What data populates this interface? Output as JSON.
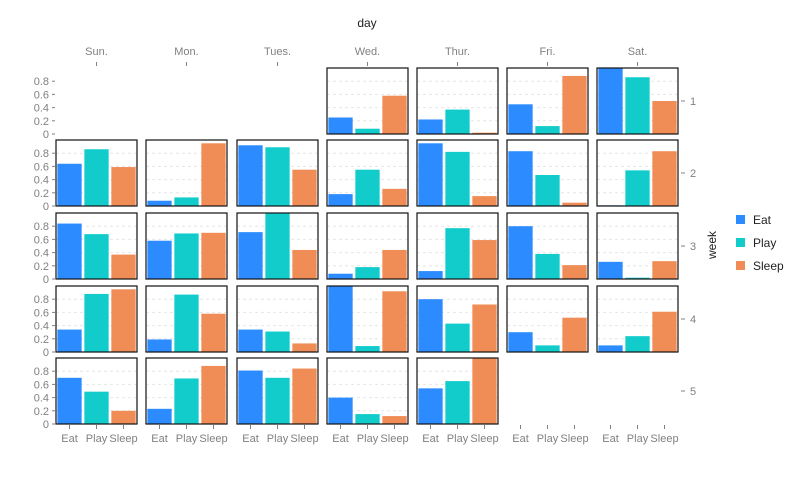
{
  "chart_data": {
    "type": "bar",
    "layout": "facet-grid",
    "title": "",
    "column_title": "day",
    "row_title": "week",
    "columns": [
      "Sun.",
      "Mon.",
      "Tues.",
      "Wed.",
      "Thur.",
      "Fri.",
      "Sat."
    ],
    "rows": [
      "1",
      "2",
      "3",
      "4",
      "5"
    ],
    "categories": [
      "Eat",
      "Play",
      "Sleep"
    ],
    "ylim": [
      0,
      1
    ],
    "yticks": [
      "0",
      "0.2",
      "0.4",
      "0.6",
      "0.8"
    ],
    "grid": true,
    "legend_position": "right",
    "colors": {
      "Eat": "#2b8bff",
      "Play": "#12cccc",
      "Sleep": "#f08c55"
    },
    "legend": [
      {
        "name": "Eat",
        "color": "#2b8bff"
      },
      {
        "name": "Play",
        "color": "#12cccc"
      },
      {
        "name": "Sleep",
        "color": "#f08c55"
      }
    ],
    "panels": [
      {
        "week": "1",
        "day": "Wed.",
        "values": [
          0.25,
          0.08,
          0.58
        ]
      },
      {
        "week": "1",
        "day": "Thur.",
        "values": [
          0.22,
          0.37,
          0.02
        ]
      },
      {
        "week": "1",
        "day": "Fri.",
        "values": [
          0.45,
          0.12,
          0.88
        ]
      },
      {
        "week": "1",
        "day": "Sat.",
        "values": [
          1.0,
          0.86,
          0.5
        ]
      },
      {
        "week": "2",
        "day": "Sun.",
        "values": [
          0.64,
          0.86,
          0.59
        ]
      },
      {
        "week": "2",
        "day": "Mon.",
        "values": [
          0.08,
          0.13,
          0.95
        ]
      },
      {
        "week": "2",
        "day": "Tues.",
        "values": [
          0.92,
          0.89,
          0.55
        ]
      },
      {
        "week": "2",
        "day": "Wed.",
        "values": [
          0.18,
          0.55,
          0.26
        ]
      },
      {
        "week": "2",
        "day": "Thur.",
        "values": [
          0.95,
          0.82,
          0.15
        ]
      },
      {
        "week": "2",
        "day": "Fri.",
        "values": [
          0.83,
          0.47,
          0.05
        ]
      },
      {
        "week": "2",
        "day": "Sat.",
        "values": [
          0.01,
          0.54,
          0.83
        ]
      },
      {
        "week": "3",
        "day": "Sun.",
        "values": [
          0.84,
          0.68,
          0.37
        ]
      },
      {
        "week": "3",
        "day": "Mon.",
        "values": [
          0.58,
          0.69,
          0.7
        ]
      },
      {
        "week": "3",
        "day": "Tues.",
        "values": [
          0.71,
          1.0,
          0.44
        ]
      },
      {
        "week": "3",
        "day": "Wed.",
        "values": [
          0.08,
          0.18,
          0.44
        ]
      },
      {
        "week": "3",
        "day": "Thur.",
        "values": [
          0.12,
          0.77,
          0.59
        ]
      },
      {
        "week": "3",
        "day": "Fri.",
        "values": [
          0.8,
          0.38,
          0.21
        ]
      },
      {
        "week": "3",
        "day": "Sat.",
        "values": [
          0.26,
          0.02,
          0.27
        ]
      },
      {
        "week": "4",
        "day": "Sun.",
        "values": [
          0.34,
          0.88,
          0.95
        ]
      },
      {
        "week": "4",
        "day": "Mon.",
        "values": [
          0.19,
          0.87,
          0.58
        ]
      },
      {
        "week": "4",
        "day": "Tues.",
        "values": [
          0.34,
          0.31,
          0.13
        ]
      },
      {
        "week": "4",
        "day": "Wed.",
        "values": [
          1.0,
          0.09,
          0.92
        ]
      },
      {
        "week": "4",
        "day": "Thur.",
        "values": [
          0.8,
          0.43,
          0.72
        ]
      },
      {
        "week": "4",
        "day": "Fri.",
        "values": [
          0.3,
          0.1,
          0.52
        ]
      },
      {
        "week": "4",
        "day": "Sat.",
        "values": [
          0.1,
          0.24,
          0.61
        ]
      },
      {
        "week": "5",
        "day": "Sun.",
        "values": [
          0.7,
          0.49,
          0.2
        ]
      },
      {
        "week": "5",
        "day": "Mon.",
        "values": [
          0.23,
          0.69,
          0.88
        ]
      },
      {
        "week": "5",
        "day": "Tues.",
        "values": [
          0.81,
          0.7,
          0.84
        ]
      },
      {
        "week": "5",
        "day": "Wed.",
        "values": [
          0.4,
          0.15,
          0.12
        ]
      },
      {
        "week": "5",
        "day": "Thur.",
        "values": [
          0.54,
          0.65,
          1.0
        ]
      }
    ]
  }
}
